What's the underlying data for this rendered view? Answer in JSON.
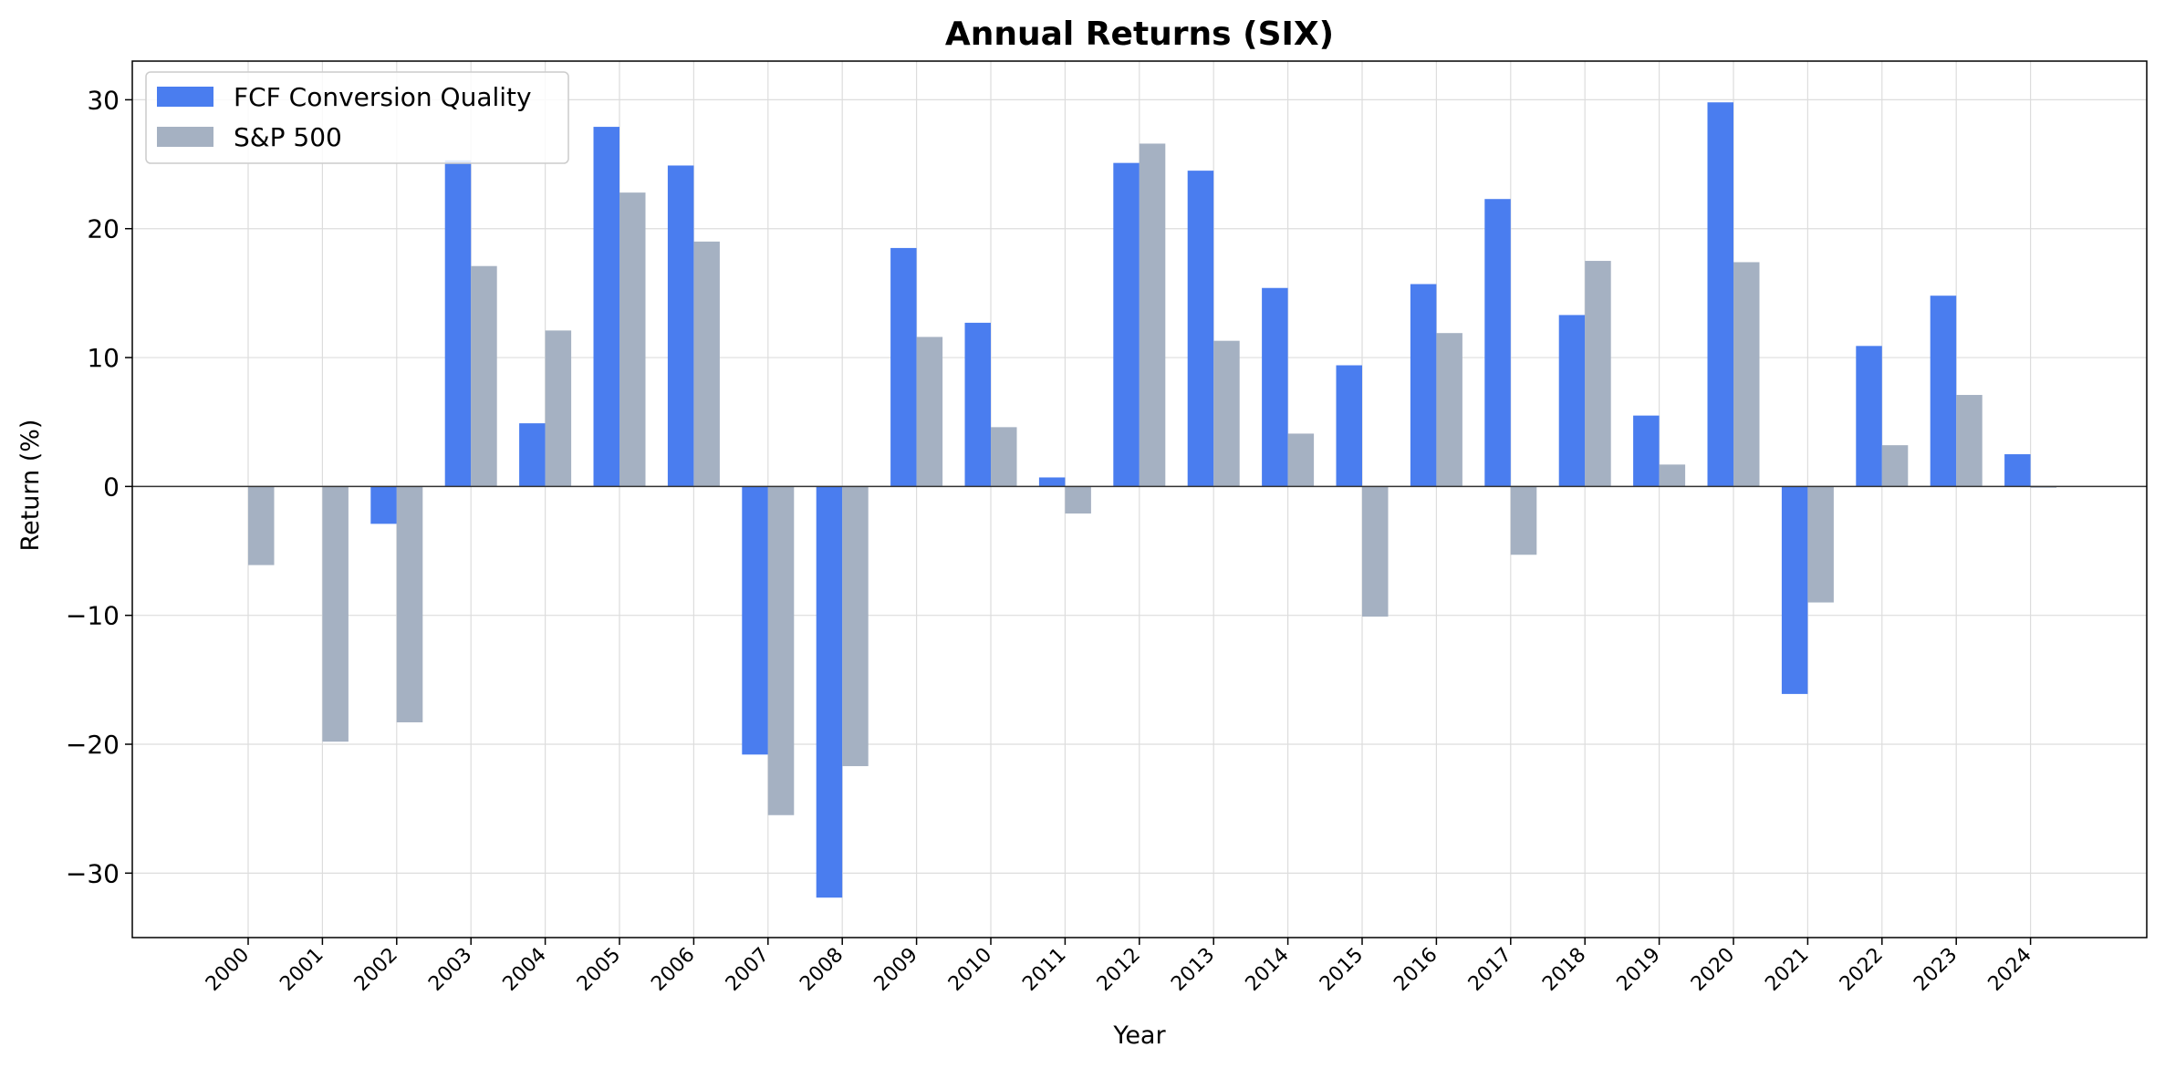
{
  "chart_data": {
    "type": "bar",
    "title": "Annual Returns (SIX)",
    "xlabel": "Year",
    "ylabel": "Return (%)",
    "ylim": [
      -35,
      33
    ],
    "yticks": [
      -30,
      -20,
      -10,
      0,
      10,
      20,
      30
    ],
    "grid": true,
    "legend_position": "top-left",
    "categories": [
      "2000",
      "2001",
      "2002",
      "2003",
      "2004",
      "2005",
      "2006",
      "2007",
      "2008",
      "2009",
      "2010",
      "2011",
      "2012",
      "2013",
      "2014",
      "2015",
      "2016",
      "2017",
      "2018",
      "2019",
      "2020",
      "2021",
      "2022",
      "2023",
      "2024"
    ],
    "series": [
      {
        "name": "FCF Conversion Quality",
        "color": "#4a7def",
        "values": [
          null,
          null,
          -2.9,
          25.3,
          4.9,
          27.9,
          24.9,
          -20.8,
          -31.9,
          18.5,
          12.7,
          0.7,
          25.1,
          24.5,
          15.4,
          9.4,
          15.7,
          22.3,
          13.3,
          5.5,
          29.8,
          -16.1,
          10.9,
          14.8,
          2.5
        ]
      },
      {
        "name": "S&P 500",
        "color": "#a5b1c2",
        "values": [
          -6.1,
          -19.8,
          -18.3,
          17.1,
          12.1,
          22.8,
          19.0,
          -25.5,
          -21.7,
          11.6,
          4.6,
          -2.1,
          26.6,
          11.3,
          4.1,
          -10.1,
          11.9,
          -5.3,
          17.5,
          1.7,
          17.4,
          -9.0,
          3.2,
          7.1,
          -0.1
        ]
      }
    ]
  }
}
